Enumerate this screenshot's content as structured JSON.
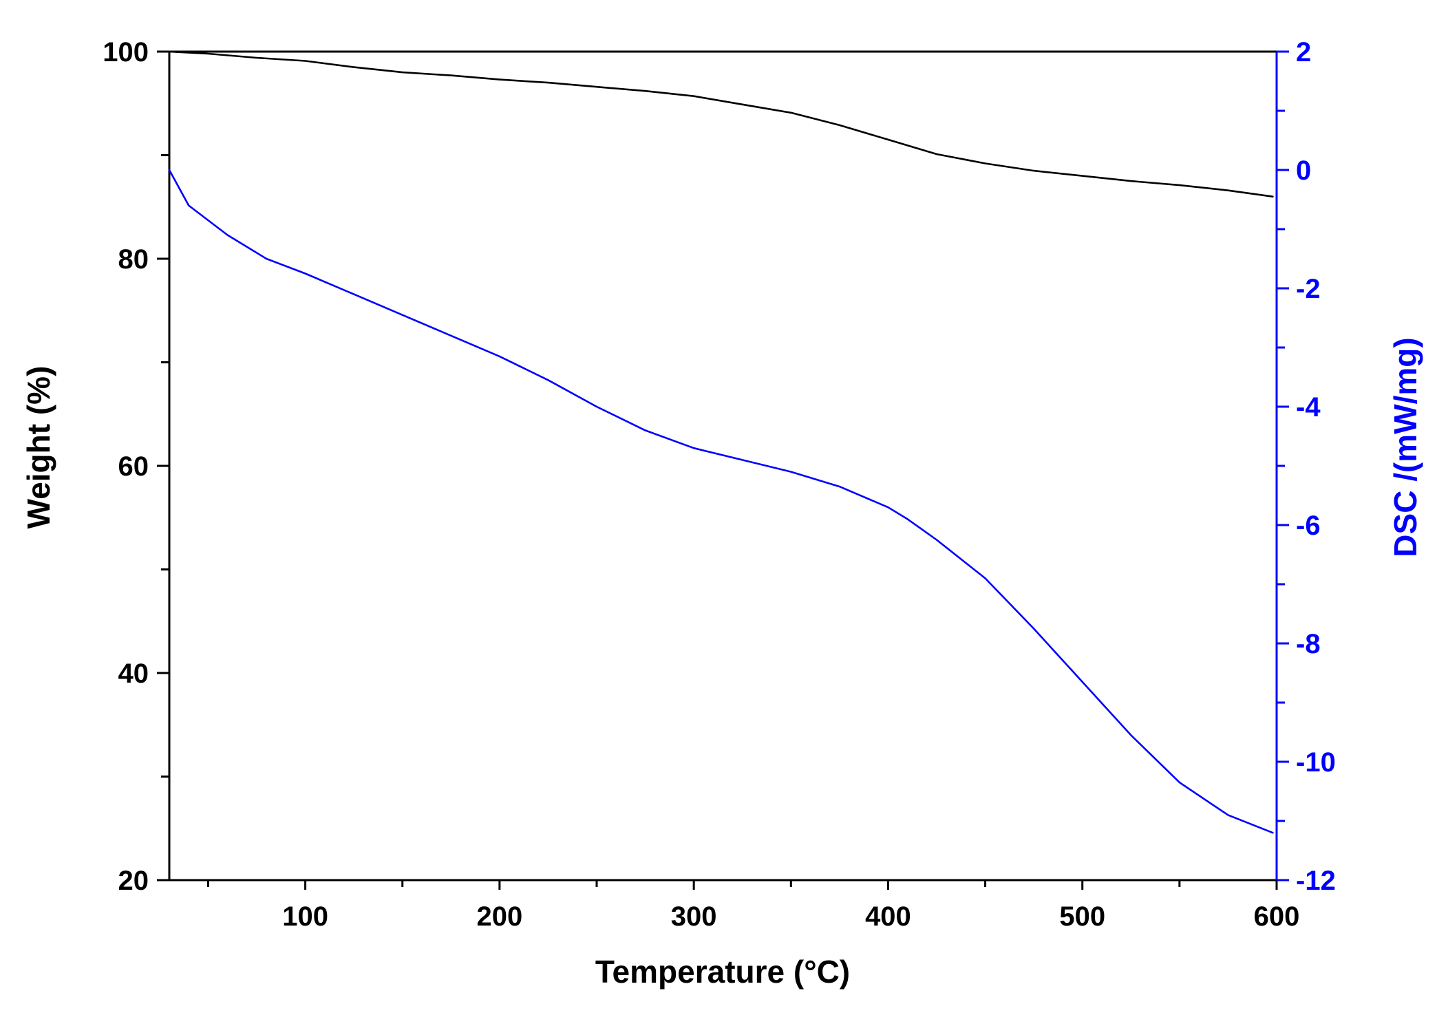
{
  "chart_data": {
    "type": "line",
    "title": "",
    "xlabel": "Temperature (°C)",
    "ylabel": "Weight (%)",
    "y2label": "DSC /(mW/mg)",
    "xlim": [
      30,
      600
    ],
    "ylim": [
      20,
      100
    ],
    "y2lim": [
      -12,
      2
    ],
    "x_ticks": [
      100,
      200,
      300,
      400,
      500,
      600
    ],
    "y_ticks": [
      20,
      40,
      60,
      80,
      100
    ],
    "y2_ticks": [
      -12,
      -10,
      -8,
      -6,
      -4,
      -2,
      0,
      2
    ],
    "grid": false,
    "colors": {
      "weight": "#000000",
      "dsc": "#0000ff",
      "axis": "#000000",
      "axis2": "#0000ff"
    },
    "series": [
      {
        "name": "Weight",
        "axis": "left",
        "color": "#000000",
        "x": [
          30,
          50,
          75,
          100,
          125,
          150,
          175,
          200,
          225,
          250,
          275,
          300,
          325,
          350,
          375,
          400,
          425,
          450,
          475,
          500,
          525,
          550,
          575,
          598
        ],
        "y": [
          100,
          99.8,
          99.4,
          99.1,
          98.5,
          98.0,
          97.7,
          97.3,
          97.0,
          96.6,
          96.2,
          95.7,
          94.9,
          94.1,
          92.9,
          91.5,
          90.1,
          89.2,
          88.5,
          88.0,
          87.5,
          87.1,
          86.6,
          86.0
        ]
      },
      {
        "name": "DSC",
        "axis": "right",
        "color": "#0000ff",
        "x": [
          30,
          40,
          60,
          80,
          100,
          125,
          150,
          175,
          200,
          225,
          250,
          275,
          300,
          325,
          350,
          375,
          400,
          410,
          425,
          450,
          475,
          500,
          525,
          550,
          575,
          598
        ],
        "y": [
          0,
          -0.6,
          -1.1,
          -1.5,
          -1.75,
          -2.1,
          -2.45,
          -2.8,
          -3.15,
          -3.55,
          -4.0,
          -4.4,
          -4.7,
          -4.9,
          -5.1,
          -5.35,
          -5.7,
          -5.9,
          -6.25,
          -6.9,
          -7.75,
          -8.65,
          -9.55,
          -10.35,
          -10.9,
          -11.2
        ]
      }
    ]
  }
}
